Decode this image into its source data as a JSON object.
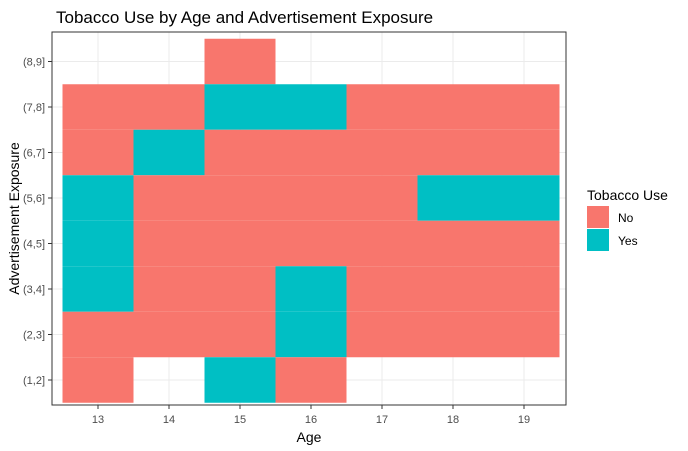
{
  "chart_data": {
    "type": "heatmap",
    "title": "Tobacco Use by Age and Advertisement Exposure",
    "xlabel": "Age",
    "ylabel": "Advertisement Exposure",
    "x_categories": [
      "13",
      "14",
      "15",
      "16",
      "17",
      "18",
      "19"
    ],
    "y_categories": [
      "(1,2]",
      "(2,3]",
      "(3,4]",
      "(4,5]",
      "(5,6]",
      "(6,7]",
      "(7,8]",
      "(8,9]"
    ],
    "legend": {
      "title": "Tobacco Use",
      "position": "right",
      "entries": [
        {
          "label": "No",
          "color": "#F8766D"
        },
        {
          "label": "Yes",
          "color": "#00BFC4"
        }
      ]
    },
    "grid": true,
    "cells": [
      {
        "x": "15",
        "y": "(8,9]",
        "value": "No"
      },
      {
        "x": "13",
        "y": "(7,8]",
        "value": "No"
      },
      {
        "x": "14",
        "y": "(7,8]",
        "value": "No"
      },
      {
        "x": "15",
        "y": "(7,8]",
        "value": "Yes"
      },
      {
        "x": "16",
        "y": "(7,8]",
        "value": "Yes"
      },
      {
        "x": "17",
        "y": "(7,8]",
        "value": "No"
      },
      {
        "x": "18",
        "y": "(7,8]",
        "value": "No"
      },
      {
        "x": "19",
        "y": "(7,8]",
        "value": "No"
      },
      {
        "x": "13",
        "y": "(6,7]",
        "value": "No"
      },
      {
        "x": "14",
        "y": "(6,7]",
        "value": "Yes"
      },
      {
        "x": "15",
        "y": "(6,7]",
        "value": "No"
      },
      {
        "x": "16",
        "y": "(6,7]",
        "value": "No"
      },
      {
        "x": "17",
        "y": "(6,7]",
        "value": "No"
      },
      {
        "x": "18",
        "y": "(6,7]",
        "value": "No"
      },
      {
        "x": "19",
        "y": "(6,7]",
        "value": "No"
      },
      {
        "x": "13",
        "y": "(5,6]",
        "value": "Yes"
      },
      {
        "x": "14",
        "y": "(5,6]",
        "value": "No"
      },
      {
        "x": "15",
        "y": "(5,6]",
        "value": "No"
      },
      {
        "x": "16",
        "y": "(5,6]",
        "value": "No"
      },
      {
        "x": "17",
        "y": "(5,6]",
        "value": "No"
      },
      {
        "x": "18",
        "y": "(5,6]",
        "value": "Yes"
      },
      {
        "x": "19",
        "y": "(5,6]",
        "value": "Yes"
      },
      {
        "x": "13",
        "y": "(4,5]",
        "value": "Yes"
      },
      {
        "x": "14",
        "y": "(4,5]",
        "value": "No"
      },
      {
        "x": "15",
        "y": "(4,5]",
        "value": "No"
      },
      {
        "x": "16",
        "y": "(4,5]",
        "value": "No"
      },
      {
        "x": "17",
        "y": "(4,5]",
        "value": "No"
      },
      {
        "x": "18",
        "y": "(4,5]",
        "value": "No"
      },
      {
        "x": "19",
        "y": "(4,5]",
        "value": "No"
      },
      {
        "x": "13",
        "y": "(3,4]",
        "value": "Yes"
      },
      {
        "x": "14",
        "y": "(3,4]",
        "value": "No"
      },
      {
        "x": "15",
        "y": "(3,4]",
        "value": "No"
      },
      {
        "x": "16",
        "y": "(3,4]",
        "value": "Yes"
      },
      {
        "x": "17",
        "y": "(3,4]",
        "value": "No"
      },
      {
        "x": "18",
        "y": "(3,4]",
        "value": "No"
      },
      {
        "x": "19",
        "y": "(3,4]",
        "value": "No"
      },
      {
        "x": "13",
        "y": "(2,3]",
        "value": "No"
      },
      {
        "x": "14",
        "y": "(2,3]",
        "value": "No"
      },
      {
        "x": "15",
        "y": "(2,3]",
        "value": "No"
      },
      {
        "x": "16",
        "y": "(2,3]",
        "value": "Yes"
      },
      {
        "x": "17",
        "y": "(2,3]",
        "value": "No"
      },
      {
        "x": "18",
        "y": "(2,3]",
        "value": "No"
      },
      {
        "x": "19",
        "y": "(2,3]",
        "value": "No"
      },
      {
        "x": "13",
        "y": "(1,2]",
        "value": "No"
      },
      {
        "x": "15",
        "y": "(1,2]",
        "value": "Yes"
      },
      {
        "x": "16",
        "y": "(1,2]",
        "value": "No"
      }
    ]
  }
}
